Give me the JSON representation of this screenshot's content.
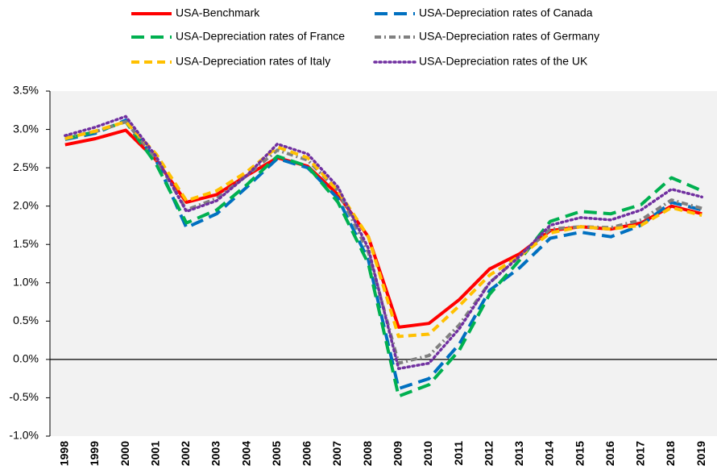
{
  "chart_data": {
    "type": "line",
    "categories": [
      "1998",
      "1999",
      "2000",
      "2001",
      "2002",
      "2003",
      "2004",
      "2005",
      "2006",
      "2007",
      "2008",
      "2009",
      "2010",
      "2011",
      "2012",
      "2013",
      "2014",
      "2015",
      "2016",
      "2017",
      "2018",
      "2019"
    ],
    "series": [
      {
        "name": "USA-Benchmark",
        "color": "#ff0000",
        "dash": "solid",
        "values": [
          2.8,
          2.88,
          2.99,
          2.6,
          2.05,
          2.15,
          2.4,
          2.63,
          2.52,
          2.15,
          1.6,
          0.42,
          0.47,
          0.78,
          1.18,
          1.38,
          1.68,
          1.73,
          1.7,
          1.78,
          2.0,
          1.9
        ]
      },
      {
        "name": "USA-Depreciation rates of Canada",
        "color": "#0070c0",
        "dash": "longdash",
        "values": [
          2.87,
          2.95,
          3.12,
          2.6,
          1.72,
          1.9,
          2.25,
          2.62,
          2.5,
          2.1,
          1.3,
          -0.38,
          -0.25,
          0.2,
          0.9,
          1.2,
          1.58,
          1.66,
          1.6,
          1.75,
          2.05,
          1.95
        ]
      },
      {
        "name": "USA-Depreciation rates of France",
        "color": "#00b050",
        "dash": "longdash",
        "values": [
          2.88,
          2.97,
          3.1,
          2.55,
          1.78,
          1.95,
          2.28,
          2.65,
          2.52,
          2.05,
          1.25,
          -0.48,
          -0.33,
          0.12,
          0.85,
          1.3,
          1.8,
          1.93,
          1.9,
          2.02,
          2.37,
          2.2
        ]
      },
      {
        "name": "USA-Depreciation rates of Germany",
        "color": "#808080",
        "dash": "dashdot",
        "values": [
          2.9,
          2.97,
          3.1,
          2.62,
          1.95,
          2.1,
          2.4,
          2.73,
          2.6,
          2.2,
          1.4,
          -0.05,
          0.05,
          0.45,
          1.0,
          1.35,
          1.7,
          1.73,
          1.72,
          1.82,
          2.08,
          1.97
        ]
      },
      {
        "name": "USA-Depreciation rates of Italy",
        "color": "#ffc000",
        "dash": "dash",
        "values": [
          2.88,
          2.98,
          3.1,
          2.68,
          2.07,
          2.2,
          2.45,
          2.77,
          2.63,
          2.2,
          1.6,
          0.3,
          0.33,
          0.7,
          1.1,
          1.35,
          1.65,
          1.73,
          1.7,
          1.75,
          1.98,
          1.88
        ]
      },
      {
        "name": "USA-Depreciation rates of the UK",
        "color": "#7030a0",
        "dash": "dot",
        "values": [
          2.92,
          3.03,
          3.17,
          2.65,
          1.93,
          2.07,
          2.4,
          2.81,
          2.68,
          2.25,
          1.45,
          -0.12,
          -0.05,
          0.4,
          1.0,
          1.35,
          1.75,
          1.85,
          1.82,
          1.95,
          2.22,
          2.12
        ]
      }
    ],
    "ylim": [
      -1.0,
      3.5
    ],
    "yticks": [
      {
        "value": 3.5,
        "label": "3.5%"
      },
      {
        "value": 3.0,
        "label": "3.0%"
      },
      {
        "value": 2.5,
        "label": "2.5%"
      },
      {
        "value": 2.0,
        "label": "2.0%"
      },
      {
        "value": 1.5,
        "label": "1.5%"
      },
      {
        "value": 1.0,
        "label": "1.0%"
      },
      {
        "value": 0.5,
        "label": "0.5%"
      },
      {
        "value": 0,
        "label": "0.0%"
      },
      {
        "value": -0.5,
        "label": "-0.5%"
      },
      {
        "value": -1.0,
        "label": "-1.0%"
      }
    ],
    "legend": "top"
  }
}
